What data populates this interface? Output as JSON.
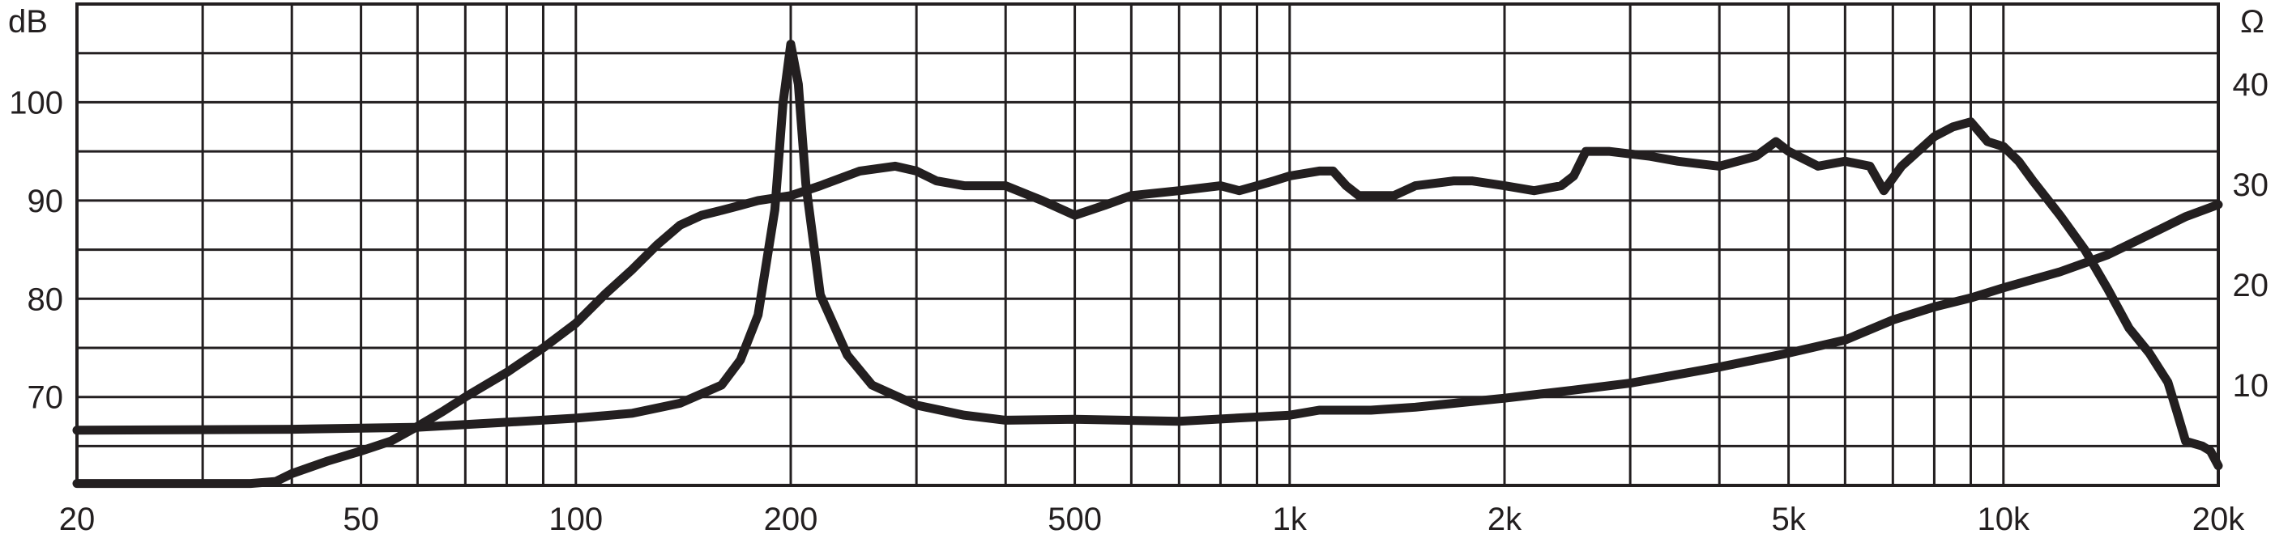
{
  "chart_data": {
    "type": "line",
    "x_scale": "log",
    "xlim": [
      20,
      20000
    ],
    "ylim_left": [
      61,
      110
    ],
    "ylim_right": [
      0,
      48
    ],
    "grid": true,
    "left_axis_unit": "dB",
    "right_axis_unit": "Ω",
    "x_ticks": [
      {
        "value": 20,
        "label": "20"
      },
      {
        "value": 50,
        "label": "50"
      },
      {
        "value": 100,
        "label": "100"
      },
      {
        "value": 200,
        "label": "200"
      },
      {
        "value": 500,
        "label": "500"
      },
      {
        "value": 1000,
        "label": "1k"
      },
      {
        "value": 2000,
        "label": "2k"
      },
      {
        "value": 5000,
        "label": "5k"
      },
      {
        "value": 10000,
        "label": "10k"
      },
      {
        "value": 20000,
        "label": "20k"
      }
    ],
    "y_ticks_left": [
      {
        "value": 70,
        "label": "70"
      },
      {
        "value": 80,
        "label": "80"
      },
      {
        "value": 90,
        "label": "90"
      },
      {
        "value": 100,
        "label": "100"
      }
    ],
    "y_ticks_right": [
      {
        "value": 10,
        "label": "10"
      },
      {
        "value": 20,
        "label": "20"
      },
      {
        "value": 30,
        "label": "30"
      },
      {
        "value": 40,
        "label": "40"
      }
    ],
    "series": [
      {
        "axis": "left",
        "points": [
          [
            20,
            61.2
          ],
          [
            25,
            61.2
          ],
          [
            30,
            61.2
          ],
          [
            35,
            61.2
          ],
          [
            38,
            61.4
          ],
          [
            40,
            62.2
          ],
          [
            45,
            63.5
          ],
          [
            50,
            64.5
          ],
          [
            55,
            65.5
          ],
          [
            60,
            67.0
          ],
          [
            65,
            68.5
          ],
          [
            70,
            70.0
          ],
          [
            80,
            72.5
          ],
          [
            90,
            75.0
          ],
          [
            100,
            77.5
          ],
          [
            110,
            80.5
          ],
          [
            120,
            83.0
          ],
          [
            130,
            85.5
          ],
          [
            140,
            87.5
          ],
          [
            150,
            88.5
          ],
          [
            160,
            89.0
          ],
          [
            170,
            89.5
          ],
          [
            180,
            90.0
          ],
          [
            200,
            90.5
          ],
          [
            220,
            91.5
          ],
          [
            250,
            93.0
          ],
          [
            280,
            93.5
          ],
          [
            300,
            93.0
          ],
          [
            320,
            92.0
          ],
          [
            350,
            91.5
          ],
          [
            400,
            91.5
          ],
          [
            450,
            90.0
          ],
          [
            500,
            88.5
          ],
          [
            550,
            89.5
          ],
          [
            600,
            90.5
          ],
          [
            700,
            91.0
          ],
          [
            800,
            91.5
          ],
          [
            850,
            91.0
          ],
          [
            900,
            91.5
          ],
          [
            950,
            92.0
          ],
          [
            1000,
            92.5
          ],
          [
            1100,
            93.0
          ],
          [
            1150,
            93.0
          ],
          [
            1200,
            91.5
          ],
          [
            1250,
            90.5
          ],
          [
            1300,
            90.5
          ],
          [
            1400,
            90.5
          ],
          [
            1500,
            91.5
          ],
          [
            1700,
            92.0
          ],
          [
            1800,
            92.0
          ],
          [
            2000,
            91.5
          ],
          [
            2200,
            91.0
          ],
          [
            2400,
            91.5
          ],
          [
            2500,
            92.5
          ],
          [
            2600,
            95.0
          ],
          [
            2800,
            95.0
          ],
          [
            3200,
            94.5
          ],
          [
            3500,
            94.0
          ],
          [
            4000,
            93.5
          ],
          [
            4500,
            94.5
          ],
          [
            4800,
            96.0
          ],
          [
            5000,
            95.0
          ],
          [
            5500,
            93.5
          ],
          [
            6000,
            94.0
          ],
          [
            6500,
            93.5
          ],
          [
            6800,
            91.0
          ],
          [
            7200,
            93.5
          ],
          [
            8000,
            96.5
          ],
          [
            8500,
            97.5
          ],
          [
            9000,
            98.0
          ],
          [
            9500,
            96.0
          ],
          [
            10000,
            95.5
          ],
          [
            10500,
            94.0
          ],
          [
            11000,
            92.0
          ],
          [
            12000,
            88.5
          ],
          [
            13000,
            85.0
          ],
          [
            14000,
            81.0
          ],
          [
            15000,
            77.0
          ],
          [
            16000,
            74.5
          ],
          [
            17000,
            71.5
          ],
          [
            17500,
            68.5
          ],
          [
            18000,
            65.5
          ],
          [
            19000,
            65.0
          ],
          [
            19500,
            64.5
          ],
          [
            20000,
            63.0
          ]
        ]
      },
      {
        "axis": "right",
        "points": [
          [
            20,
            5.5
          ],
          [
            40,
            5.6
          ],
          [
            60,
            5.8
          ],
          [
            80,
            6.3
          ],
          [
            100,
            6.7
          ],
          [
            120,
            7.2
          ],
          [
            140,
            8.2
          ],
          [
            160,
            10.0
          ],
          [
            170,
            12.5
          ],
          [
            180,
            17.0
          ],
          [
            190,
            27.5
          ],
          [
            195,
            38.0
          ],
          [
            200,
            44.0
          ],
          [
            205,
            40.0
          ],
          [
            210,
            30.0
          ],
          [
            220,
            19.0
          ],
          [
            240,
            13.0
          ],
          [
            260,
            10.0
          ],
          [
            300,
            8.0
          ],
          [
            350,
            7.0
          ],
          [
            400,
            6.5
          ],
          [
            500,
            6.6
          ],
          [
            700,
            6.4
          ],
          [
            1000,
            7.0
          ],
          [
            1100,
            7.5
          ],
          [
            1300,
            7.5
          ],
          [
            1500,
            7.8
          ],
          [
            2000,
            8.7
          ],
          [
            2500,
            9.5
          ],
          [
            3000,
            10.2
          ],
          [
            4000,
            11.8
          ],
          [
            5000,
            13.2
          ],
          [
            6000,
            14.5
          ],
          [
            7000,
            16.5
          ],
          [
            8000,
            17.8
          ],
          [
            9000,
            18.7
          ],
          [
            10000,
            19.7
          ],
          [
            12000,
            21.3
          ],
          [
            14000,
            23.0
          ],
          [
            16000,
            25.0
          ],
          [
            18000,
            26.8
          ],
          [
            20000,
            28.0
          ]
        ]
      }
    ]
  }
}
